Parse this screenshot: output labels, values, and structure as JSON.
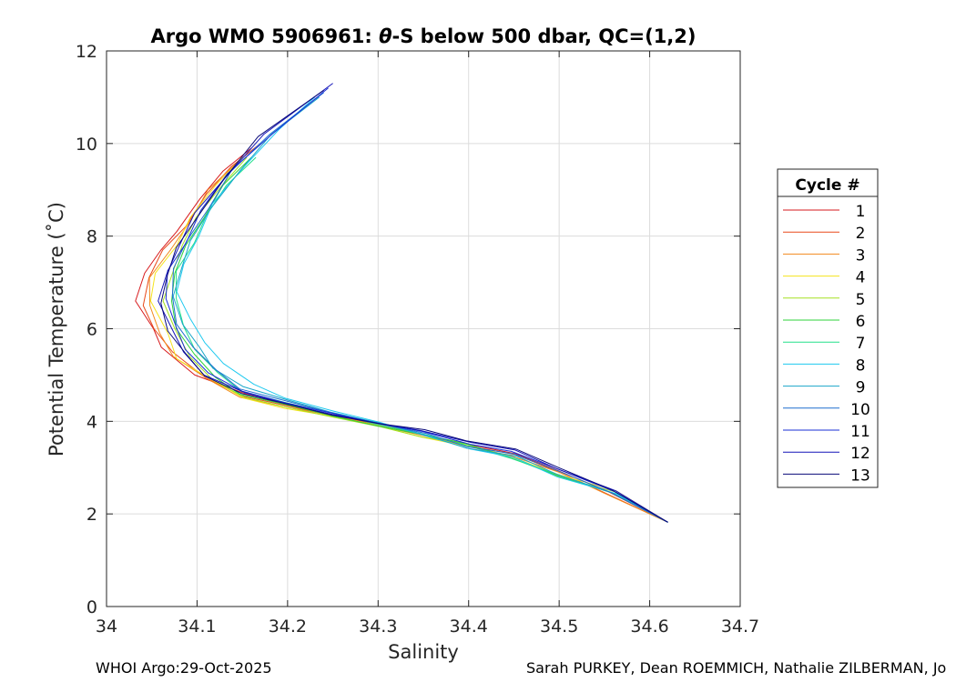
{
  "chart_data": {
    "type": "line",
    "title_prefix": "Argo WMO 5906961: ",
    "title_theta": "θ",
    "title_suffix": "-S below 500 dbar,  QC=(1,2)",
    "xlabel": "Salinity",
    "ylabel": "Potential Temperature (˚C)",
    "xlim": [
      34,
      34.7
    ],
    "ylim": [
      0,
      12
    ],
    "xticks": [
      34,
      34.1,
      34.2,
      34.3,
      34.4,
      34.5,
      34.6,
      34.7
    ],
    "xtick_labels": [
      "34",
      "34.1",
      "34.2",
      "34.3",
      "34.4",
      "34.5",
      "34.6",
      "34.7"
    ],
    "yticks": [
      0,
      2,
      4,
      6,
      8,
      10,
      12
    ],
    "ytick_labels": [
      "0",
      "2",
      "4",
      "6",
      "8",
      "10",
      "12"
    ],
    "grid": true,
    "legend_title": "Cycle #",
    "legend_position": "outside-right",
    "series": [
      {
        "name": "1",
        "color": "#d7191c",
        "points": [
          [
            34.62,
            1.82
          ],
          [
            34.55,
            2.5
          ],
          [
            34.5,
            2.95
          ],
          [
            34.45,
            3.3
          ],
          [
            34.4,
            3.5
          ],
          [
            34.35,
            3.72
          ],
          [
            34.3,
            3.95
          ],
          [
            34.25,
            4.15
          ],
          [
            34.2,
            4.35
          ],
          [
            34.15,
            4.6
          ],
          [
            34.1,
            5.0
          ],
          [
            34.06,
            5.6
          ],
          [
            34.05,
            6.0
          ],
          [
            34.035,
            6.6
          ],
          [
            34.04,
            7.2
          ],
          [
            34.06,
            7.7
          ],
          [
            34.08,
            8.1
          ],
          [
            34.1,
            8.8
          ],
          [
            34.13,
            9.4
          ],
          [
            34.16,
            9.9
          ]
        ]
      },
      {
        "name": "2",
        "color": "#e8491a",
        "points": [
          [
            34.62,
            1.82
          ],
          [
            34.55,
            2.48
          ],
          [
            34.5,
            2.9
          ],
          [
            34.45,
            3.28
          ],
          [
            34.4,
            3.48
          ],
          [
            34.35,
            3.7
          ],
          [
            34.3,
            3.93
          ],
          [
            34.25,
            4.13
          ],
          [
            34.2,
            4.32
          ],
          [
            34.15,
            4.55
          ],
          [
            34.11,
            4.95
          ],
          [
            34.07,
            5.5
          ],
          [
            34.055,
            6.0
          ],
          [
            34.04,
            6.5
          ],
          [
            34.045,
            7.1
          ],
          [
            34.065,
            7.7
          ],
          [
            34.085,
            8.2
          ],
          [
            34.11,
            8.9
          ],
          [
            34.14,
            9.5
          ],
          [
            34.17,
            10.0
          ]
        ]
      },
      {
        "name": "3",
        "color": "#f28a1e",
        "points": [
          [
            34.62,
            1.82
          ],
          [
            34.55,
            2.46
          ],
          [
            34.5,
            2.88
          ],
          [
            34.45,
            3.25
          ],
          [
            34.4,
            3.46
          ],
          [
            34.35,
            3.68
          ],
          [
            34.3,
            3.92
          ],
          [
            34.25,
            4.12
          ],
          [
            34.2,
            4.3
          ],
          [
            34.15,
            4.52
          ],
          [
            34.11,
            4.9
          ],
          [
            34.075,
            5.4
          ],
          [
            34.06,
            5.9
          ],
          [
            34.045,
            6.5
          ],
          [
            34.05,
            7.1
          ],
          [
            34.07,
            7.7
          ],
          [
            34.09,
            8.3
          ],
          [
            34.115,
            9.0
          ],
          [
            34.145,
            9.6
          ]
        ]
      },
      {
        "name": "4",
        "color": "#f5e31c",
        "points": [
          [
            34.62,
            1.82
          ],
          [
            34.56,
            2.5
          ],
          [
            34.5,
            2.85
          ],
          [
            34.45,
            3.22
          ],
          [
            34.4,
            3.44
          ],
          [
            34.35,
            3.66
          ],
          [
            34.3,
            3.9
          ],
          [
            34.25,
            4.1
          ],
          [
            34.2,
            4.28
          ],
          [
            34.15,
            4.5
          ],
          [
            34.12,
            4.85
          ],
          [
            34.08,
            5.35
          ],
          [
            34.065,
            5.9
          ],
          [
            34.05,
            6.6
          ],
          [
            34.055,
            7.2
          ],
          [
            34.075,
            7.8
          ],
          [
            34.095,
            8.4
          ],
          [
            34.12,
            9.1
          ],
          [
            34.15,
            9.7
          ]
        ]
      },
      {
        "name": "5",
        "color": "#a6e022",
        "points": [
          [
            34.62,
            1.82
          ],
          [
            34.56,
            2.48
          ],
          [
            34.5,
            2.82
          ],
          [
            34.45,
            3.2
          ],
          [
            34.4,
            3.5
          ],
          [
            34.35,
            3.66
          ],
          [
            34.3,
            3.88
          ],
          [
            34.25,
            4.1
          ],
          [
            34.2,
            4.3
          ],
          [
            34.15,
            4.52
          ],
          [
            34.12,
            4.9
          ],
          [
            34.09,
            5.4
          ],
          [
            34.075,
            6.0
          ],
          [
            34.065,
            6.6
          ],
          [
            34.07,
            7.2
          ],
          [
            34.085,
            7.8
          ],
          [
            34.1,
            8.4
          ],
          [
            34.125,
            9.1
          ],
          [
            34.155,
            9.7
          ]
        ]
      },
      {
        "name": "6",
        "color": "#2fd33b",
        "points": [
          [
            34.62,
            1.82
          ],
          [
            34.56,
            2.46
          ],
          [
            34.5,
            2.8
          ],
          [
            34.45,
            3.18
          ],
          [
            34.4,
            3.52
          ],
          [
            34.35,
            3.7
          ],
          [
            34.3,
            3.9
          ],
          [
            34.25,
            4.12
          ],
          [
            34.2,
            4.34
          ],
          [
            34.15,
            4.58
          ],
          [
            34.12,
            4.95
          ],
          [
            34.095,
            5.45
          ],
          [
            34.08,
            6.0
          ],
          [
            34.07,
            6.6
          ],
          [
            34.075,
            7.2
          ],
          [
            34.09,
            7.8
          ],
          [
            34.105,
            8.4
          ],
          [
            34.13,
            9.1
          ],
          [
            34.16,
            9.7
          ]
        ]
      },
      {
        "name": "7",
        "color": "#22e08a",
        "points": [
          [
            34.62,
            1.82
          ],
          [
            34.56,
            2.45
          ],
          [
            34.5,
            2.82
          ],
          [
            34.45,
            3.2
          ],
          [
            34.4,
            3.46
          ],
          [
            34.35,
            3.72
          ],
          [
            34.3,
            3.94
          ],
          [
            34.25,
            4.16
          ],
          [
            34.2,
            4.4
          ],
          [
            34.15,
            4.65
          ],
          [
            34.12,
            5.05
          ],
          [
            34.1,
            5.55
          ],
          [
            34.085,
            6.05
          ],
          [
            34.075,
            6.65
          ],
          [
            34.08,
            7.25
          ],
          [
            34.095,
            7.85
          ],
          [
            34.11,
            8.45
          ],
          [
            34.135,
            9.1
          ],
          [
            34.165,
            9.7
          ]
        ]
      },
      {
        "name": "8",
        "color": "#1ec9ef",
        "points": [
          [
            34.62,
            1.82
          ],
          [
            34.56,
            2.44
          ],
          [
            34.5,
            2.8
          ],
          [
            34.45,
            3.22
          ],
          [
            34.4,
            3.4
          ],
          [
            34.35,
            3.72
          ],
          [
            34.3,
            3.98
          ],
          [
            34.25,
            4.22
          ],
          [
            34.2,
            4.5
          ],
          [
            34.16,
            4.8
          ],
          [
            34.13,
            5.25
          ],
          [
            34.11,
            5.7
          ],
          [
            34.09,
            6.2
          ],
          [
            34.08,
            6.8
          ],
          [
            34.085,
            7.4
          ],
          [
            34.1,
            8.0
          ],
          [
            34.12,
            8.7
          ],
          [
            34.15,
            9.5
          ],
          [
            34.19,
            10.3
          ],
          [
            34.23,
            11.0
          ]
        ]
      },
      {
        "name": "9",
        "color": "#1aa6c9",
        "points": [
          [
            34.62,
            1.82
          ],
          [
            34.56,
            2.45
          ],
          [
            34.5,
            2.85
          ],
          [
            34.45,
            3.25
          ],
          [
            34.4,
            3.42
          ],
          [
            34.35,
            3.72
          ],
          [
            34.3,
            3.96
          ],
          [
            34.25,
            4.2
          ],
          [
            34.2,
            4.45
          ],
          [
            34.15,
            4.75
          ],
          [
            34.12,
            5.15
          ],
          [
            34.1,
            5.6
          ],
          [
            34.085,
            6.1
          ],
          [
            34.075,
            6.7
          ],
          [
            34.08,
            7.3
          ],
          [
            34.095,
            7.9
          ],
          [
            34.115,
            8.6
          ],
          [
            34.145,
            9.4
          ],
          [
            34.185,
            10.2
          ],
          [
            34.235,
            11.0
          ]
        ]
      },
      {
        "name": "10",
        "color": "#1f6fcf",
        "points": [
          [
            34.62,
            1.82
          ],
          [
            34.56,
            2.46
          ],
          [
            34.5,
            2.9
          ],
          [
            34.45,
            3.3
          ],
          [
            34.4,
            3.45
          ],
          [
            34.35,
            3.74
          ],
          [
            34.3,
            3.96
          ],
          [
            34.25,
            4.18
          ],
          [
            34.2,
            4.42
          ],
          [
            34.15,
            4.7
          ],
          [
            34.12,
            5.1
          ],
          [
            34.095,
            5.6
          ],
          [
            34.08,
            6.1
          ],
          [
            34.07,
            6.7
          ],
          [
            34.075,
            7.3
          ],
          [
            34.09,
            7.9
          ],
          [
            34.11,
            8.6
          ],
          [
            34.14,
            9.4
          ],
          [
            34.18,
            10.2
          ],
          [
            34.24,
            11.1
          ]
        ]
      },
      {
        "name": "11",
        "color": "#1a2fd6",
        "points": [
          [
            34.62,
            1.82
          ],
          [
            34.56,
            2.48
          ],
          [
            34.5,
            2.95
          ],
          [
            34.45,
            3.35
          ],
          [
            34.4,
            3.5
          ],
          [
            34.35,
            3.78
          ],
          [
            34.3,
            3.96
          ],
          [
            34.25,
            4.16
          ],
          [
            34.2,
            4.4
          ],
          [
            34.15,
            4.65
          ],
          [
            34.11,
            5.05
          ],
          [
            34.09,
            5.55
          ],
          [
            34.075,
            6.05
          ],
          [
            34.065,
            6.65
          ],
          [
            34.07,
            7.25
          ],
          [
            34.085,
            7.85
          ],
          [
            34.105,
            8.55
          ],
          [
            34.135,
            9.35
          ],
          [
            34.18,
            10.2
          ],
          [
            34.245,
            11.2
          ]
        ]
      },
      {
        "name": "12",
        "color": "#1414b8",
        "points": [
          [
            34.62,
            1.82
          ],
          [
            34.56,
            2.5
          ],
          [
            34.5,
            2.98
          ],
          [
            34.45,
            3.38
          ],
          [
            34.4,
            3.55
          ],
          [
            34.35,
            3.8
          ],
          [
            34.3,
            3.95
          ],
          [
            34.25,
            4.15
          ],
          [
            34.2,
            4.38
          ],
          [
            34.15,
            4.62
          ],
          [
            34.11,
            5.0
          ],
          [
            34.085,
            5.5
          ],
          [
            34.07,
            6.0
          ],
          [
            34.06,
            6.6
          ],
          [
            34.065,
            7.2
          ],
          [
            34.08,
            7.8
          ],
          [
            34.1,
            8.5
          ],
          [
            34.13,
            9.3
          ],
          [
            34.175,
            10.2
          ],
          [
            34.25,
            11.3
          ]
        ]
      },
      {
        "name": "13",
        "color": "#0a0a7a",
        "points": [
          [
            34.62,
            1.82
          ],
          [
            34.56,
            2.52
          ],
          [
            34.5,
            3.0
          ],
          [
            34.45,
            3.4
          ],
          [
            34.4,
            3.58
          ],
          [
            34.35,
            3.82
          ],
          [
            34.3,
            3.95
          ],
          [
            34.25,
            4.14
          ],
          [
            34.2,
            4.36
          ],
          [
            34.15,
            4.6
          ],
          [
            34.11,
            4.98
          ],
          [
            34.085,
            5.45
          ],
          [
            34.07,
            5.95
          ],
          [
            34.06,
            6.55
          ],
          [
            34.065,
            7.15
          ],
          [
            34.08,
            7.75
          ],
          [
            34.1,
            8.45
          ],
          [
            34.13,
            9.25
          ],
          [
            34.17,
            10.15
          ],
          [
            34.24,
            11.15
          ]
        ]
      }
    ]
  },
  "footer": {
    "left": "WHOI Argo:29-Oct-2025",
    "right": "Sarah PURKEY, Dean ROEMMICH, Nathalie ZILBERMAN, Jo"
  }
}
